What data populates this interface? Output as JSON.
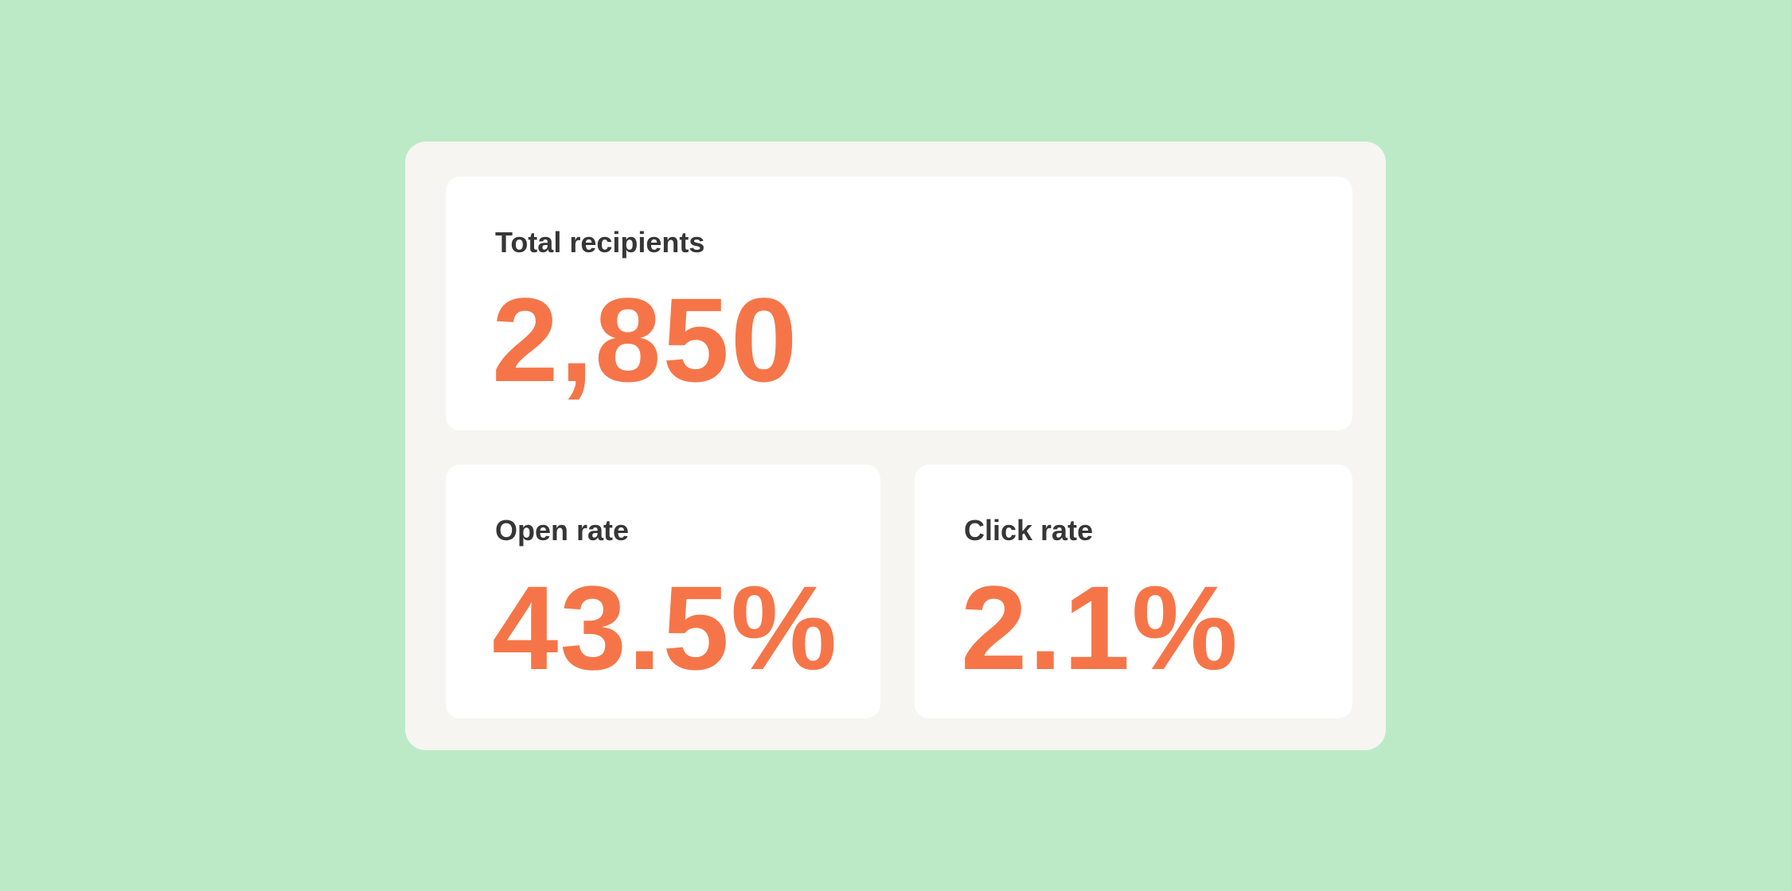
{
  "cards": [
    {
      "label": "Total recipients",
      "value": "2,850"
    },
    {
      "label": "Open rate",
      "value": "43.5%"
    },
    {
      "label": "Click rate",
      "value": "2.1%"
    }
  ]
}
